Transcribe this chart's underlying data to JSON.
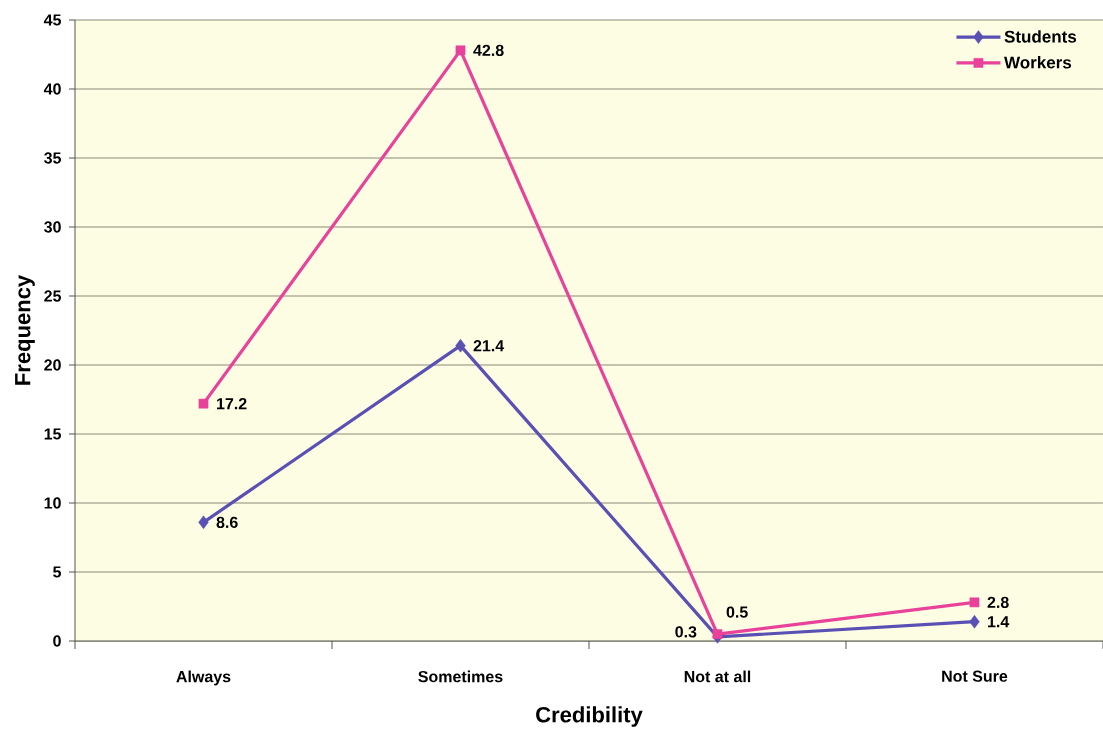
{
  "chart_data": {
    "type": "line",
    "xlabel": "Credibility",
    "ylabel": "Frequency",
    "categories": [
      "Always",
      "Sometimes",
      "Not at all",
      "Not Sure"
    ],
    "series": [
      {
        "name": "Students",
        "color": "#5a50b4",
        "marker": "diamond",
        "values": [
          8.6,
          21.4,
          0.3,
          1.4
        ]
      },
      {
        "name": "Workers",
        "color": "#e8429a",
        "marker": "square",
        "values": [
          17.2,
          42.8,
          0.5,
          2.8
        ]
      }
    ],
    "ylim": [
      0,
      45
    ],
    "yticks": [
      0,
      5,
      10,
      15,
      20,
      25,
      30,
      35,
      40,
      45
    ],
    "grid": "y",
    "legend": "top right",
    "data_labels": true,
    "line_style": "solid"
  }
}
